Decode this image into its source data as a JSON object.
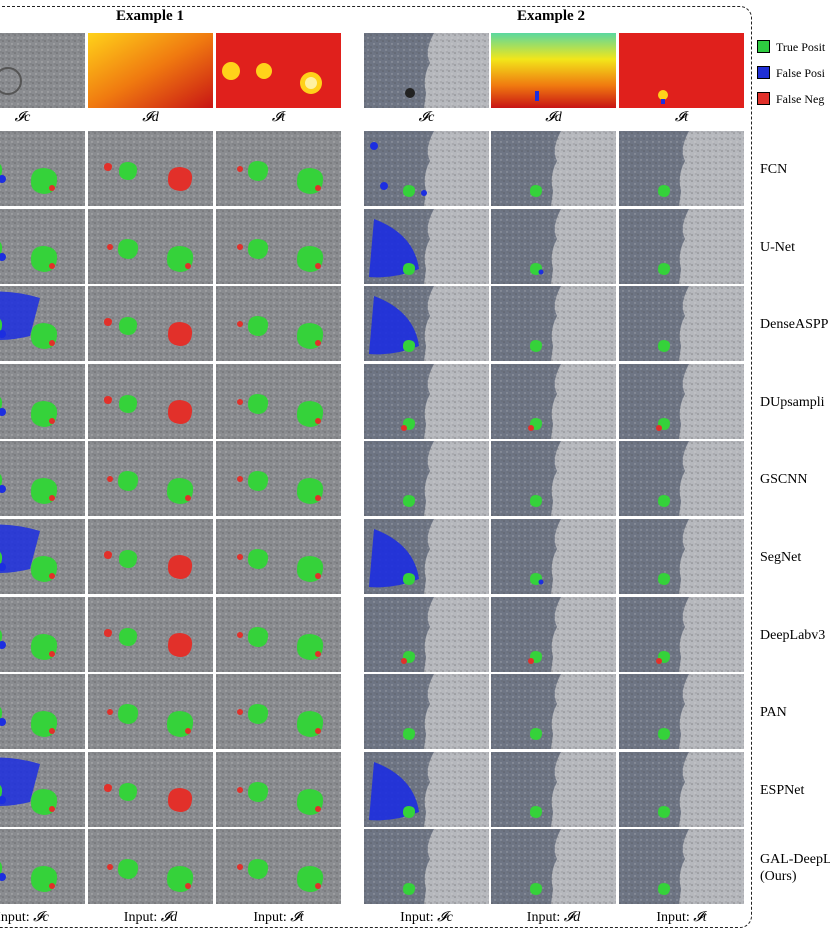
{
  "examples": [
    {
      "title": "Example 1"
    },
    {
      "title": "Example 2"
    }
  ],
  "input_labels": [
    "𝓘c",
    "𝓘d",
    "𝓘t"
  ],
  "bottom_prefix": "Input: ",
  "legend": [
    {
      "label": "True Posit",
      "color": "#2ecc40"
    },
    {
      "label": "False Posi",
      "color": "#1f2fd6"
    },
    {
      "label": "False Neg",
      "color": "#e0302a"
    }
  ],
  "methods": [
    "FCN",
    "U-Net",
    "DenseASPP",
    "DUpsampli",
    "GSCNN",
    "SegNet",
    "DeepLabv3",
    "PAN",
    "ESPNet",
    "GAL-DeepL"
  ],
  "methods_note": "(Ours)",
  "colors": {
    "tp": "#35d23a",
    "fp": "#1c2ee0",
    "fn": "#e2302a"
  }
}
